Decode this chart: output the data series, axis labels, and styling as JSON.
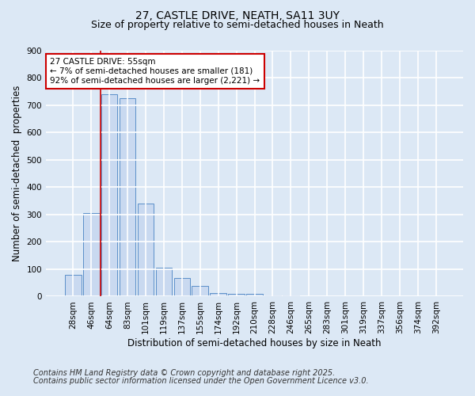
{
  "title": "27, CASTLE DRIVE, NEATH, SA11 3UY",
  "subtitle": "Size of property relative to semi-detached houses in Neath",
  "xlabel": "Distribution of semi-detached houses by size in Neath",
  "ylabel": "Number of semi-detached  properties",
  "categories": [
    "28sqm",
    "46sqm",
    "64sqm",
    "83sqm",
    "101sqm",
    "119sqm",
    "137sqm",
    "155sqm",
    "174sqm",
    "192sqm",
    "210sqm",
    "228sqm",
    "246sqm",
    "265sqm",
    "283sqm",
    "301sqm",
    "319sqm",
    "337sqm",
    "356sqm",
    "374sqm",
    "392sqm"
  ],
  "values": [
    80,
    307,
    740,
    725,
    340,
    107,
    68,
    38,
    13,
    11,
    9,
    5,
    3,
    0,
    0,
    0,
    0,
    0,
    0,
    0,
    0
  ],
  "bar_color": "#c9d9f0",
  "bar_edge_color": "#5b8fc9",
  "red_line_x": 1.5,
  "annotation_title": "27 CASTLE DRIVE: 55sqm",
  "annotation_line1": "← 7% of semi-detached houses are smaller (181)",
  "annotation_line2": "92% of semi-detached houses are larger (2,221) →",
  "annotation_box_color": "#ffffff",
  "annotation_box_edge": "#cc0000",
  "red_line_color": "#cc0000",
  "background_color": "#dce8f5",
  "plot_bg_color": "#dce8f5",
  "grid_color": "#ffffff",
  "ylim": [
    0,
    900
  ],
  "footnote1": "Contains HM Land Registry data © Crown copyright and database right 2025.",
  "footnote2": "Contains public sector information licensed under the Open Government Licence v3.0.",
  "title_fontsize": 10,
  "subtitle_fontsize": 9,
  "axis_label_fontsize": 8.5,
  "tick_fontsize": 7.5,
  "annot_fontsize": 7.5,
  "footnote_fontsize": 7
}
